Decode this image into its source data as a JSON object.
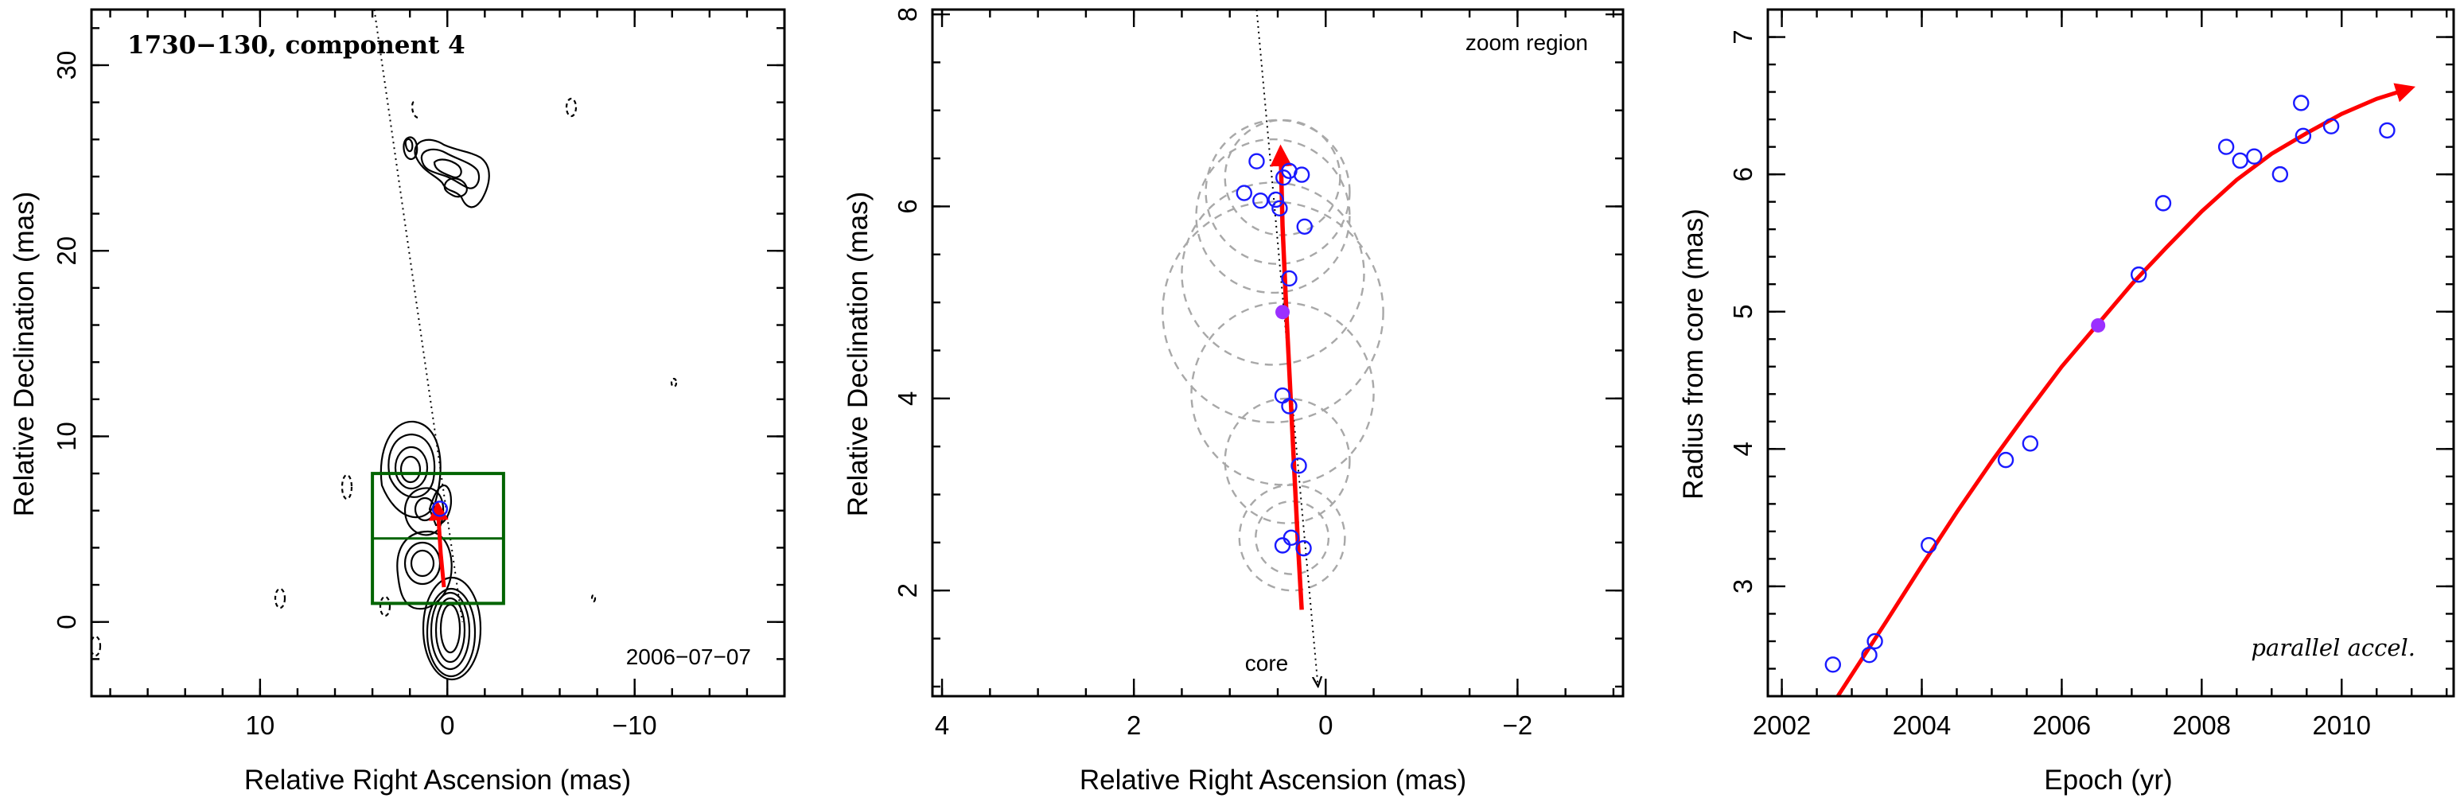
{
  "colors": {
    "fit": "#ff0000",
    "points": "#1a1aff",
    "highlight": "#9b30ff",
    "box": "#006400",
    "circles": "#a8a8a8",
    "contours": "#000000"
  },
  "chart_data": [
    {
      "type": "scatter",
      "title": "1730−130, component 4",
      "epoch_label": "2006−07−07",
      "xlabel": "Relative Right Ascension (mas)",
      "ylabel": "Relative Declination (mas)",
      "xlim": [
        19,
        -18
      ],
      "ylim": [
        -4,
        33
      ],
      "xticks": [
        10,
        0,
        -10
      ],
      "xtick_labels": [
        "10",
        "0",
        "−10"
      ],
      "yticks": [
        0,
        10,
        20,
        30
      ],
      "ytick_labels": [
        "0",
        "10",
        "20",
        "30"
      ],
      "jet_path_line": {
        "x": [
          3.9,
          -0.8
        ],
        "y": [
          33,
          0
        ]
      },
      "zoom_box": {
        "x": [
          4,
          -3
        ],
        "y": [
          1,
          8
        ]
      },
      "highlighted_point": {
        "x": 0.4,
        "y": 6.1
      },
      "features": "total intensity contour map with jet knot at about (-1, 24)"
    },
    {
      "type": "scatter",
      "corner_label": "zoom region",
      "core_label": "core",
      "xlabel": "Relative Right Ascension (mas)",
      "ylabel": "Relative Declination (mas)",
      "xlim": [
        4.1,
        -3.1
      ],
      "ylim": [
        0.9,
        8.05
      ],
      "xticks": [
        4,
        2,
        0,
        -2
      ],
      "xtick_labels": [
        "4",
        "2",
        "0",
        "−2"
      ],
      "yticks": [
        2,
        4,
        6,
        8
      ],
      "ytick_labels": [
        "2",
        "4",
        "6",
        "8"
      ],
      "points": [
        {
          "x": 0.72,
          "y": 6.47
        },
        {
          "x": 0.38,
          "y": 6.37
        },
        {
          "x": 0.44,
          "y": 6.3
        },
        {
          "x": 0.25,
          "y": 6.33
        },
        {
          "x": 0.85,
          "y": 6.14
        },
        {
          "x": 0.68,
          "y": 6.06
        },
        {
          "x": 0.52,
          "y": 6.07
        },
        {
          "x": 0.48,
          "y": 5.98
        },
        {
          "x": 0.22,
          "y": 5.79
        },
        {
          "x": 0.38,
          "y": 5.25
        },
        {
          "x": 0.45,
          "y": 4.03
        },
        {
          "x": 0.38,
          "y": 3.92
        },
        {
          "x": 0.28,
          "y": 3.3
        },
        {
          "x": 0.36,
          "y": 2.55
        },
        {
          "x": 0.45,
          "y": 2.47
        },
        {
          "x": 0.23,
          "y": 2.44
        }
      ],
      "highlighted_point": {
        "x": 0.45,
        "y": 4.9
      },
      "error_circles": [
        {
          "x": 0.45,
          "y": 6.3,
          "r": 0.6
        },
        {
          "x": 0.5,
          "y": 6.15,
          "r": 0.75
        },
        {
          "x": 0.55,
          "y": 5.9,
          "r": 0.8
        },
        {
          "x": 0.55,
          "y": 5.3,
          "r": 0.95
        },
        {
          "x": 0.55,
          "y": 4.9,
          "r": 1.15
        },
        {
          "x": 0.45,
          "y": 4.05,
          "r": 0.95
        },
        {
          "x": 0.4,
          "y": 3.35,
          "r": 0.65
        },
        {
          "x": 0.35,
          "y": 2.55,
          "r": 0.55
        },
        {
          "x": 0.35,
          "y": 2.55,
          "r": 0.38
        }
      ],
      "fit_path": {
        "x": [
          0.25,
          0.29,
          0.33,
          0.37,
          0.41,
          0.45,
          0.47
        ],
        "y": [
          1.8,
          2.5,
          3.3,
          4.1,
          4.9,
          5.8,
          6.6
        ]
      },
      "direction_line": {
        "x": [
          0.72,
          0.08
        ],
        "y": [
          8.05,
          1.0
        ]
      }
    },
    {
      "type": "scatter",
      "annotation": "parallel accel.",
      "xlabel": "Epoch (yr)",
      "ylabel": "Radius from core (mas)",
      "xlim": [
        2001.8,
        2011.6
      ],
      "ylim": [
        2.2,
        7.2
      ],
      "xticks": [
        2002,
        2004,
        2006,
        2008,
        2010
      ],
      "xtick_labels": [
        "2002",
        "2004",
        "2006",
        "2008",
        "2010"
      ],
      "yticks": [
        3,
        4,
        5,
        6,
        7
      ],
      "ytick_labels": [
        "3",
        "4",
        "5",
        "6",
        "7"
      ],
      "points": [
        {
          "x": 2002.73,
          "y": 2.43
        },
        {
          "x": 2003.25,
          "y": 2.5
        },
        {
          "x": 2003.33,
          "y": 2.6
        },
        {
          "x": 2004.1,
          "y": 3.3
        },
        {
          "x": 2005.2,
          "y": 3.92
        },
        {
          "x": 2005.55,
          "y": 4.04
        },
        {
          "x": 2007.1,
          "y": 5.27
        },
        {
          "x": 2007.45,
          "y": 5.79
        },
        {
          "x": 2008.35,
          "y": 6.2
        },
        {
          "x": 2008.55,
          "y": 6.1
        },
        {
          "x": 2008.75,
          "y": 6.13
        },
        {
          "x": 2009.12,
          "y": 6.0
        },
        {
          "x": 2009.42,
          "y": 6.52
        },
        {
          "x": 2009.45,
          "y": 6.28
        },
        {
          "x": 2009.85,
          "y": 6.35
        },
        {
          "x": 2010.65,
          "y": 6.32
        }
      ],
      "highlighted_point": {
        "x": 2006.52,
        "y": 4.9
      },
      "fit_curve": {
        "x": [
          2002.8,
          2003.5,
          2004.0,
          2004.5,
          2005.0,
          2005.5,
          2006.0,
          2006.5,
          2007.0,
          2007.5,
          2008.0,
          2008.5,
          2009.0,
          2009.5,
          2010.0,
          2010.5,
          2011.0
        ],
        "y": [
          2.2,
          2.75,
          3.15,
          3.54,
          3.91,
          4.26,
          4.6,
          4.9,
          5.2,
          5.47,
          5.73,
          5.96,
          6.15,
          6.3,
          6.44,
          6.55,
          6.63
        ]
      }
    }
  ]
}
